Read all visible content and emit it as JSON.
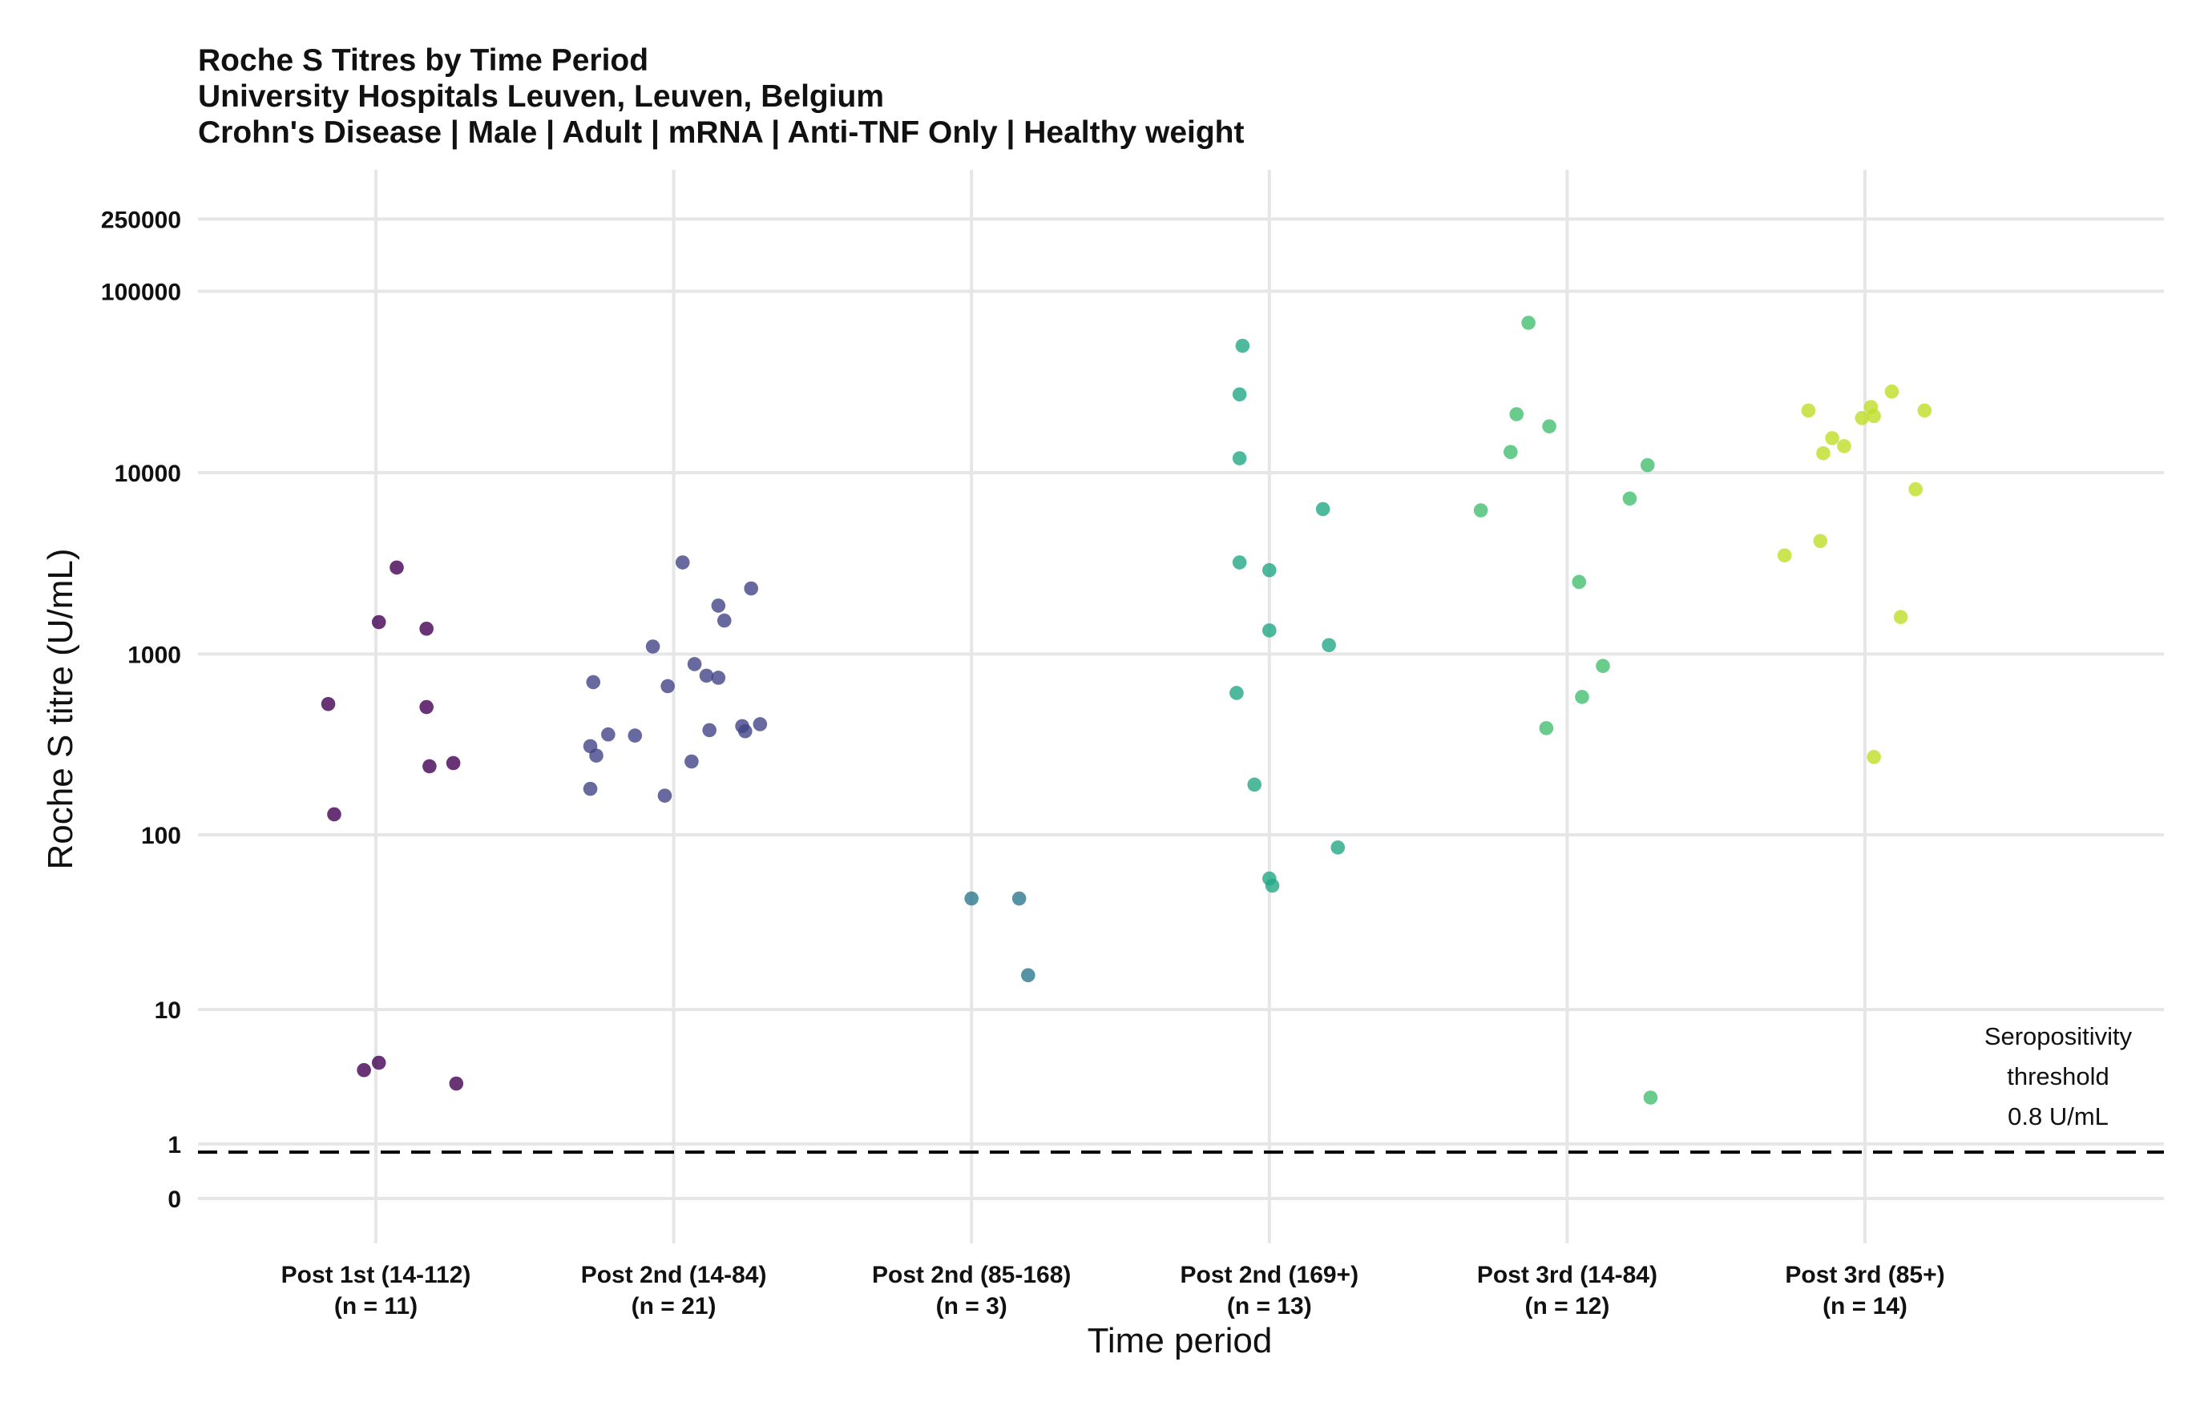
{
  "chart_data": {
    "type": "scatter",
    "title": [
      "Roche S Titres by Time Period",
      "University Hospitals Leuven, Leuven, Belgium",
      "Crohn's Disease | Male | Adult | mRNA | Anti-TNF Only | Healthy weight"
    ],
    "xlabel": "Time period",
    "ylabel": "Roche S titre (U/mL)",
    "y_scale": "log10(1 + y)",
    "y_ticks": [
      {
        "value": 0,
        "label": "0"
      },
      {
        "value": 1,
        "label": "1"
      },
      {
        "value": 10,
        "label": "10"
      },
      {
        "value": 100,
        "label": "100"
      },
      {
        "value": 1000,
        "label": "1000"
      },
      {
        "value": 10000,
        "label": "10000"
      },
      {
        "value": 100000,
        "label": "100000"
      },
      {
        "value": 250000,
        "label": "250000"
      }
    ],
    "grid": true,
    "threshold": {
      "value": 0.8,
      "style": "dashed",
      "label_lines": [
        "Seropositivity",
        "threshold",
        "0.8 U/mL"
      ]
    },
    "categories": [
      {
        "label": "Post 1st (14-112)",
        "n_label": "(n = 11)",
        "color": "#440154"
      },
      {
        "label": "Post 2nd (14-84)",
        "n_label": "(n = 21)",
        "color": "#414487"
      },
      {
        "label": "Post 2nd (85-168)",
        "n_label": "(n = 3)",
        "color": "#2a788e"
      },
      {
        "label": "Post 2nd (169+)",
        "n_label": "(n = 13)",
        "color": "#22a884"
      },
      {
        "label": "Post 3rd (14-84)",
        "n_label": "(n = 12)",
        "color": "#44bf70"
      },
      {
        "label": "Post 3rd (85+)",
        "n_label": "(n = 14)",
        "color": "#bddf26"
      }
    ],
    "series": [
      {
        "category": "Post 1st (14-112)",
        "points": [
          {
            "jitter": -0.16,
            "y": 530
          },
          {
            "jitter": -0.14,
            "y": 130
          },
          {
            "jitter": 0.01,
            "y": 1500
          },
          {
            "jitter": 0.07,
            "y": 3000
          },
          {
            "jitter": 0.17,
            "y": 1380
          },
          {
            "jitter": 0.17,
            "y": 510
          },
          {
            "jitter": 0.18,
            "y": 240
          },
          {
            "jitter": 0.26,
            "y": 250
          },
          {
            "jitter": -0.04,
            "y": 4.1
          },
          {
            "jitter": 0.01,
            "y": 4.6
          },
          {
            "jitter": 0.27,
            "y": 3.3
          }
        ]
      },
      {
        "category": "Post 2nd (14-84)",
        "points": [
          {
            "jitter": -0.28,
            "y": 310
          },
          {
            "jitter": -0.27,
            "y": 700
          },
          {
            "jitter": -0.26,
            "y": 275
          },
          {
            "jitter": -0.28,
            "y": 180
          },
          {
            "jitter": -0.22,
            "y": 360
          },
          {
            "jitter": -0.13,
            "y": 355
          },
          {
            "jitter": -0.07,
            "y": 1100
          },
          {
            "jitter": -0.02,
            "y": 665
          },
          {
            "jitter": -0.03,
            "y": 165
          },
          {
            "jitter": 0.03,
            "y": 3200
          },
          {
            "jitter": 0.07,
            "y": 880
          },
          {
            "jitter": 0.06,
            "y": 255
          },
          {
            "jitter": 0.11,
            "y": 760
          },
          {
            "jitter": 0.12,
            "y": 380
          },
          {
            "jitter": 0.15,
            "y": 740
          },
          {
            "jitter": 0.15,
            "y": 1850
          },
          {
            "jitter": 0.17,
            "y": 1530
          },
          {
            "jitter": 0.23,
            "y": 400
          },
          {
            "jitter": 0.24,
            "y": 375
          },
          {
            "jitter": 0.26,
            "y": 2300
          },
          {
            "jitter": 0.29,
            "y": 410
          }
        ]
      },
      {
        "category": "Post 2nd (85-168)",
        "points": [
          {
            "jitter": 0.0,
            "y": 44
          },
          {
            "jitter": 0.16,
            "y": 44
          },
          {
            "jitter": 0.19,
            "y": 16
          }
        ]
      },
      {
        "category": "Post 2nd (169+)",
        "points": [
          {
            "jitter": -0.09,
            "y": 50000
          },
          {
            "jitter": -0.1,
            "y": 27000
          },
          {
            "jitter": -0.1,
            "y": 12000
          },
          {
            "jitter": -0.1,
            "y": 3200
          },
          {
            "jitter": -0.11,
            "y": 610
          },
          {
            "jitter": -0.05,
            "y": 190
          },
          {
            "jitter": 0.0,
            "y": 2900
          },
          {
            "jitter": 0.0,
            "y": 1350
          },
          {
            "jitter": 0.0,
            "y": 57
          },
          {
            "jitter": 0.01,
            "y": 52
          },
          {
            "jitter": 0.18,
            "y": 6300
          },
          {
            "jitter": 0.2,
            "y": 1120
          },
          {
            "jitter": 0.23,
            "y": 85
          }
        ]
      },
      {
        "category": "Post 3rd (14-84)",
        "points": [
          {
            "jitter": -0.29,
            "y": 6200
          },
          {
            "jitter": -0.19,
            "y": 13000
          },
          {
            "jitter": -0.17,
            "y": 21000
          },
          {
            "jitter": -0.13,
            "y": 67000
          },
          {
            "jitter": -0.06,
            "y": 18000
          },
          {
            "jitter": -0.07,
            "y": 390
          },
          {
            "jitter": 0.04,
            "y": 2500
          },
          {
            "jitter": 0.05,
            "y": 580
          },
          {
            "jitter": 0.12,
            "y": 860
          },
          {
            "jitter": 0.21,
            "y": 7200
          },
          {
            "jitter": 0.27,
            "y": 11000
          },
          {
            "jitter": 0.28,
            "y": 2.6
          }
        ]
      },
      {
        "category": "Post 3rd (85+)",
        "points": [
          {
            "jitter": -0.27,
            "y": 3500
          },
          {
            "jitter": -0.19,
            "y": 22000
          },
          {
            "jitter": -0.15,
            "y": 4200
          },
          {
            "jitter": -0.14,
            "y": 12800
          },
          {
            "jitter": -0.11,
            "y": 15500
          },
          {
            "jitter": -0.07,
            "y": 14000
          },
          {
            "jitter": -0.01,
            "y": 20000
          },
          {
            "jitter": 0.02,
            "y": 23000
          },
          {
            "jitter": 0.03,
            "y": 270
          },
          {
            "jitter": 0.03,
            "y": 20500
          },
          {
            "jitter": 0.09,
            "y": 28000
          },
          {
            "jitter": 0.12,
            "y": 1600
          },
          {
            "jitter": 0.17,
            "y": 8100
          },
          {
            "jitter": 0.2,
            "y": 22000
          }
        ]
      }
    ]
  }
}
